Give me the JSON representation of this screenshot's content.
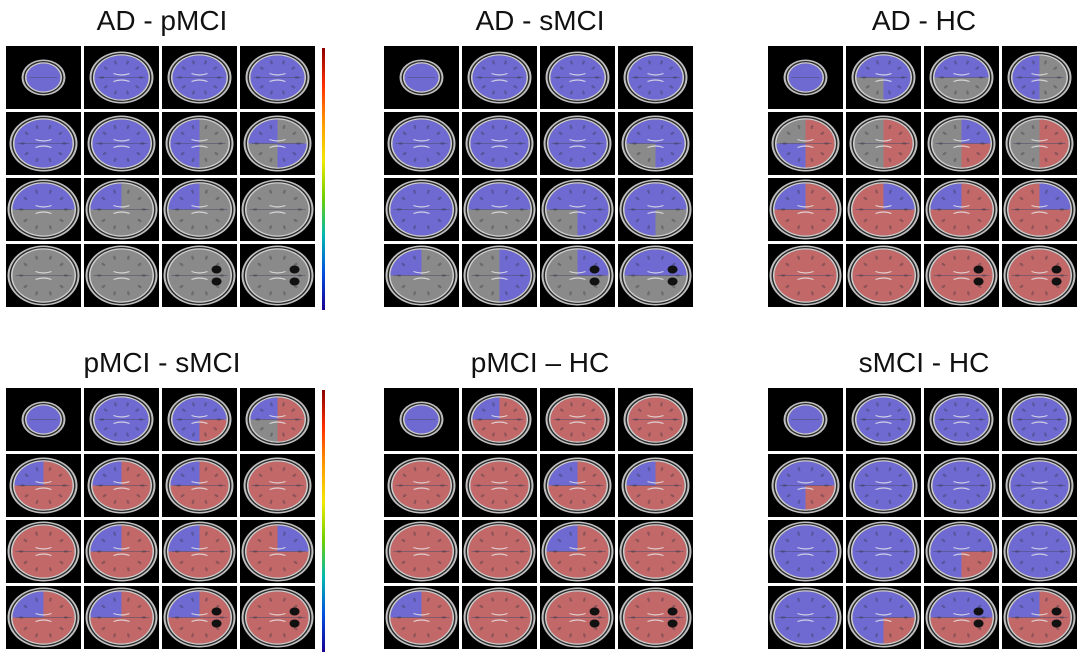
{
  "panels": [
    {
      "title": "AD - pMCI",
      "has_colorbar": true,
      "slices": [
        "bbbb",
        "bbbb",
        "bbbb",
        "bbbb",
        "bbbb",
        "bbbb",
        "bmbm",
        "bmmb",
        "bbmm",
        "bmmm",
        "bmmm",
        "mmmm",
        "mmmm",
        "mmmm",
        "mmmm",
        "mmmm"
      ]
    },
    {
      "title": "AD - sMCI",
      "has_colorbar": false,
      "slices": [
        "bbbb",
        "bbbb",
        "bbbb",
        "bbbb",
        "bbbb",
        "bbbb",
        "bbbb",
        "bbmb",
        "bbbb",
        "bbmm",
        "bbmb",
        "bbbm",
        "bmmm",
        "mbmb",
        "mbmm",
        "bbmm"
      ]
    },
    {
      "title": "AD - HC",
      "has_colorbar": false,
      "slices": [
        "bbbb",
        "bbmb",
        "bbmm",
        "bmbm",
        "mrbr",
        "mrmr",
        "mbmr",
        "mrmr",
        "brrr",
        "rbrr",
        "brrr",
        "rbrr",
        "rrrr",
        "rrrr",
        "rrrr",
        "rrrr"
      ]
    },
    {
      "title": "pMCI - sMCI",
      "has_colorbar": true,
      "slices": [
        "bbbb",
        "bbbb",
        "bbbr",
        "brmr",
        "brrr",
        "brrr",
        "brrr",
        "rrrr",
        "rrrr",
        "brrr",
        "brrr",
        "rbrr",
        "brrr",
        "brrr",
        "brrr",
        "rrrr"
      ]
    },
    {
      "title": "pMCI – HC",
      "has_colorbar": false,
      "slices": [
        "bbbb",
        "brrr",
        "rrrr",
        "rrrr",
        "rrrr",
        "rrrr",
        "brrr",
        "brrr",
        "rrrr",
        "rrrr",
        "brrr",
        "rrrr",
        "brrr",
        "rrrr",
        "rrrr",
        "rrrr"
      ]
    },
    {
      "title": "sMCI - HC",
      "has_colorbar": false,
      "slices": [
        "bbbb",
        "bbbb",
        "bbbb",
        "bbbb",
        "bbbr",
        "bbbb",
        "bbbb",
        "bbbb",
        "bbbb",
        "bbbb",
        "bbbr",
        "bbbb",
        "bbbb",
        "bbbr",
        "bbrr",
        "brrr"
      ]
    }
  ],
  "colors": {
    "red_overlay": "#c86464",
    "blue_overlay": "#6a66d8",
    "brain_gray": "#8a8a8a",
    "skull": "#d0d0d0",
    "tile_bg": "#000000"
  }
}
